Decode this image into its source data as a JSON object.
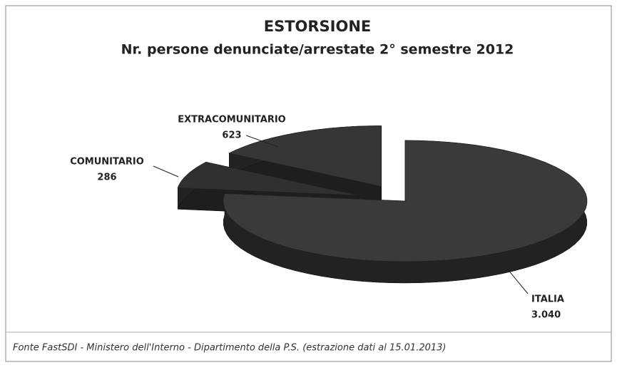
{
  "chart_data": {
    "type": "pie3d",
    "title": "ESTORSIONE",
    "subtitle": "Nr. persone denunciate/arrestate 2° semestre 2012",
    "categories": [
      "ITALIA",
      "COMUNITARIO",
      "EXTRACOMUNITARIO"
    ],
    "values": [
      3040,
      286,
      623
    ],
    "value_labels": [
      "3.040",
      "286",
      "623"
    ],
    "colors": [
      "#3a3a3a",
      "#303030",
      "#363636"
    ],
    "source": "Fonte FastSDI - Ministero dell'Interno - Dipartimento della P.S. (estrazione dati al 15.01.2013)"
  }
}
